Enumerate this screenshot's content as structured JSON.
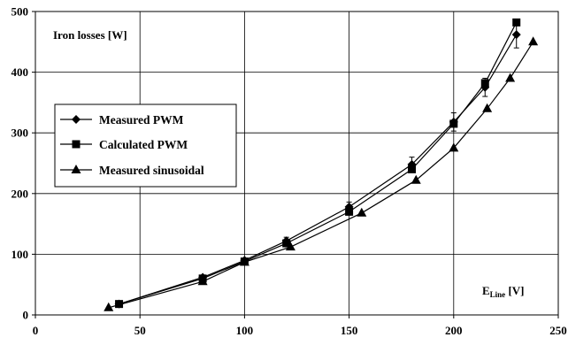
{
  "chart_data": {
    "type": "line",
    "title": "",
    "y_annotation": "Iron losses [W]",
    "x_annotation": {
      "main": "E",
      "sub": "Line",
      "unit": " [V]"
    },
    "xlim": [
      0,
      250
    ],
    "ylim": [
      0,
      500
    ],
    "x_ticks": [
      0,
      50,
      100,
      150,
      200,
      250
    ],
    "y_ticks": [
      0,
      100,
      200,
      300,
      400,
      500
    ],
    "grid": true,
    "legend_position": "left",
    "series": [
      {
        "name": "Measured PWM",
        "marker": "diamond",
        "x": [
          40,
          80,
          100,
          120,
          150,
          180,
          200,
          215,
          230
        ],
        "y": [
          18,
          62,
          90,
          122,
          178,
          248,
          318,
          375,
          462
        ],
        "error": [
          0,
          0,
          0,
          6,
          8,
          12,
          15,
          15,
          22
        ]
      },
      {
        "name": "Calculated PWM",
        "marker": "square",
        "x": [
          40,
          80,
          100,
          120,
          150,
          180,
          200,
          215,
          230
        ],
        "y": [
          18,
          60,
          88,
          118,
          170,
          240,
          315,
          382,
          482
        ]
      },
      {
        "name": "Measured sinusoidal",
        "marker": "triangle",
        "x": [
          35,
          80,
          100,
          122,
          156,
          182,
          200,
          216,
          227,
          238
        ],
        "y": [
          12,
          55,
          87,
          112,
          168,
          222,
          275,
          340,
          390,
          450
        ]
      }
    ]
  }
}
